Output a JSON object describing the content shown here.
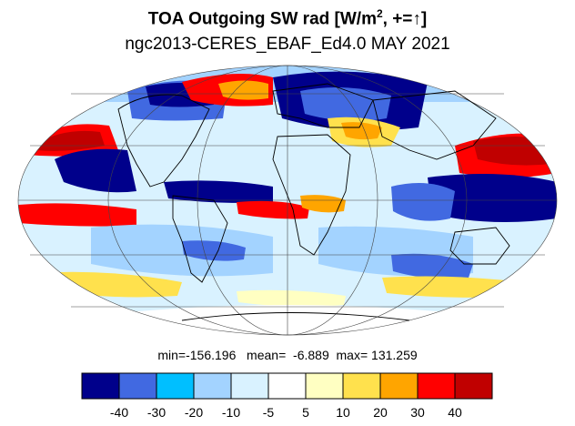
{
  "title": {
    "text_pre": "TOA Outgoing SW rad [W/m",
    "superscript": "2",
    "text_post": ", +=",
    "arrow": "↑",
    "close": "]"
  },
  "subtitle": "ngc2013-CERES_EBAF_Ed4.0 MAY 2021",
  "stats": {
    "min_label": "min=",
    "min": "-156.196",
    "mean_label": "mean=",
    "mean": "-6.889",
    "max_label": "max=",
    "max": "131.259"
  },
  "projection": "mollweide",
  "colorbar": {
    "colors": [
      "#00008b",
      "#4169e1",
      "#00bfff",
      "#a3d3ff",
      "#d9f2ff",
      "#ffffff",
      "#ffffc2",
      "#ffe14d",
      "#ffa500",
      "#ff0000",
      "#c00000"
    ],
    "tick_labels": [
      "-40",
      "-30",
      "-20",
      "-10",
      "-5",
      "5",
      "10",
      "20",
      "30",
      "40"
    ]
  }
}
